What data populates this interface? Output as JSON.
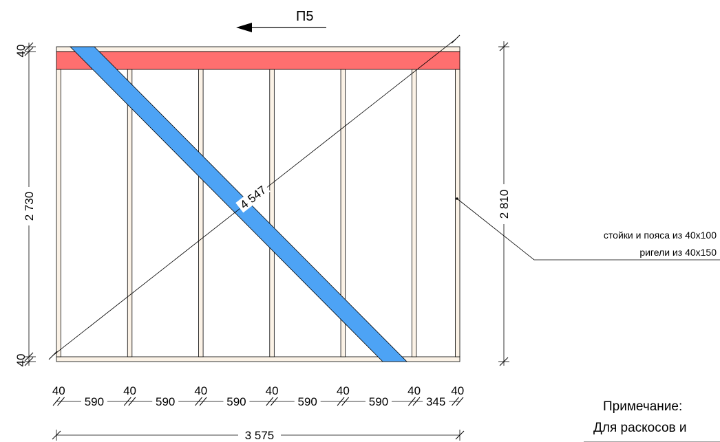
{
  "panel": {
    "title": "П5",
    "top_plate_thickness": "40",
    "bottom_plate_thickness": "40",
    "inner_height": "2 730",
    "total_height": "2 810",
    "diagonal_length": "4 547",
    "total_length": "3 575",
    "stud_width_labels": [
      "40",
      "40",
      "40",
      "40",
      "40",
      "40",
      "40"
    ],
    "spacing_labels": [
      "590",
      "590",
      "590",
      "590",
      "590",
      "345"
    ]
  },
  "notes": {
    "studs_line": "стойки и пояса из 40х100",
    "rails_line": "ригели из 40х150"
  },
  "remark": {
    "heading": "Примечание:",
    "text": "Для раскосов и"
  },
  "colors": {
    "rail_fill": "#ff6f6f",
    "brace_fill": "#4da3f5",
    "timber_fill": "#fbf2e6",
    "line": "#000000"
  }
}
